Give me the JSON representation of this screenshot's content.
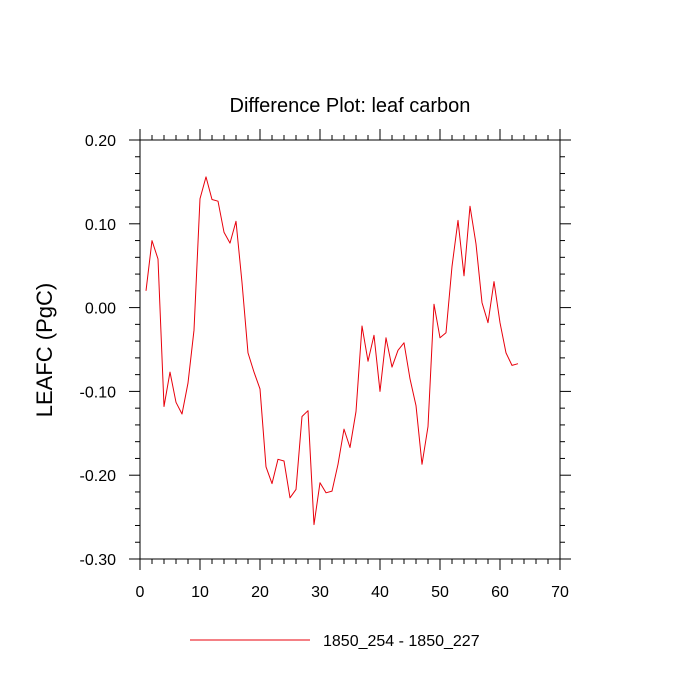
{
  "chart_data": {
    "type": "line",
    "title": "Difference Plot: leaf carbon",
    "xlabel": "",
    "ylabel": "LEAFC  (PgC)",
    "xlim": [
      0,
      70
    ],
    "ylim": [
      -0.3,
      0.2
    ],
    "x_ticks": [
      0,
      10,
      20,
      30,
      40,
      50,
      60,
      70
    ],
    "x_tick_labels": [
      "0",
      "10",
      "20",
      "30",
      "40",
      "50",
      "60",
      "70"
    ],
    "y_ticks": [
      0.2,
      0.1,
      0.0,
      -0.1,
      -0.2,
      -0.3
    ],
    "y_tick_labels": [
      "0.20",
      "0.10",
      "0.00",
      "-0.10",
      "-0.20",
      "-0.30"
    ],
    "grid": false,
    "legend_position": "bottom-center",
    "series": [
      {
        "name": "1850_254 - 1850_227",
        "color": "#e8000b",
        "x": [
          1,
          2,
          3,
          4,
          5,
          6,
          7,
          8,
          9,
          10,
          11,
          12,
          13,
          14,
          15,
          16,
          17,
          18,
          19,
          20,
          21,
          22,
          23,
          24,
          25,
          26,
          27,
          28,
          29,
          30,
          31,
          32,
          33,
          34,
          35,
          36,
          37,
          38,
          39,
          40,
          41,
          42,
          43,
          44,
          45,
          46,
          47,
          48,
          49,
          50,
          51,
          52,
          53,
          54,
          55,
          56,
          57,
          58,
          59,
          60,
          61,
          62,
          63
        ],
        "values": [
          0.02,
          0.08,
          0.058,
          -0.118,
          -0.077,
          -0.113,
          -0.127,
          -0.09,
          -0.027,
          0.13,
          0.156,
          0.129,
          0.127,
          0.09,
          0.077,
          0.103,
          0.03,
          -0.054,
          -0.077,
          -0.097,
          -0.19,
          -0.21,
          -0.181,
          -0.183,
          -0.227,
          -0.217,
          -0.13,
          -0.123,
          -0.259,
          -0.209,
          -0.221,
          -0.219,
          -0.187,
          -0.145,
          -0.167,
          -0.124,
          -0.022,
          -0.064,
          -0.033,
          -0.1,
          -0.036,
          -0.071,
          -0.051,
          -0.042,
          -0.085,
          -0.117,
          -0.187,
          -0.142,
          0.004,
          -0.036,
          -0.03,
          0.049,
          0.104,
          0.038,
          0.121,
          0.076,
          0.006,
          -0.018,
          0.031,
          -0.018,
          -0.054,
          -0.069,
          -0.067
        ]
      }
    ]
  }
}
